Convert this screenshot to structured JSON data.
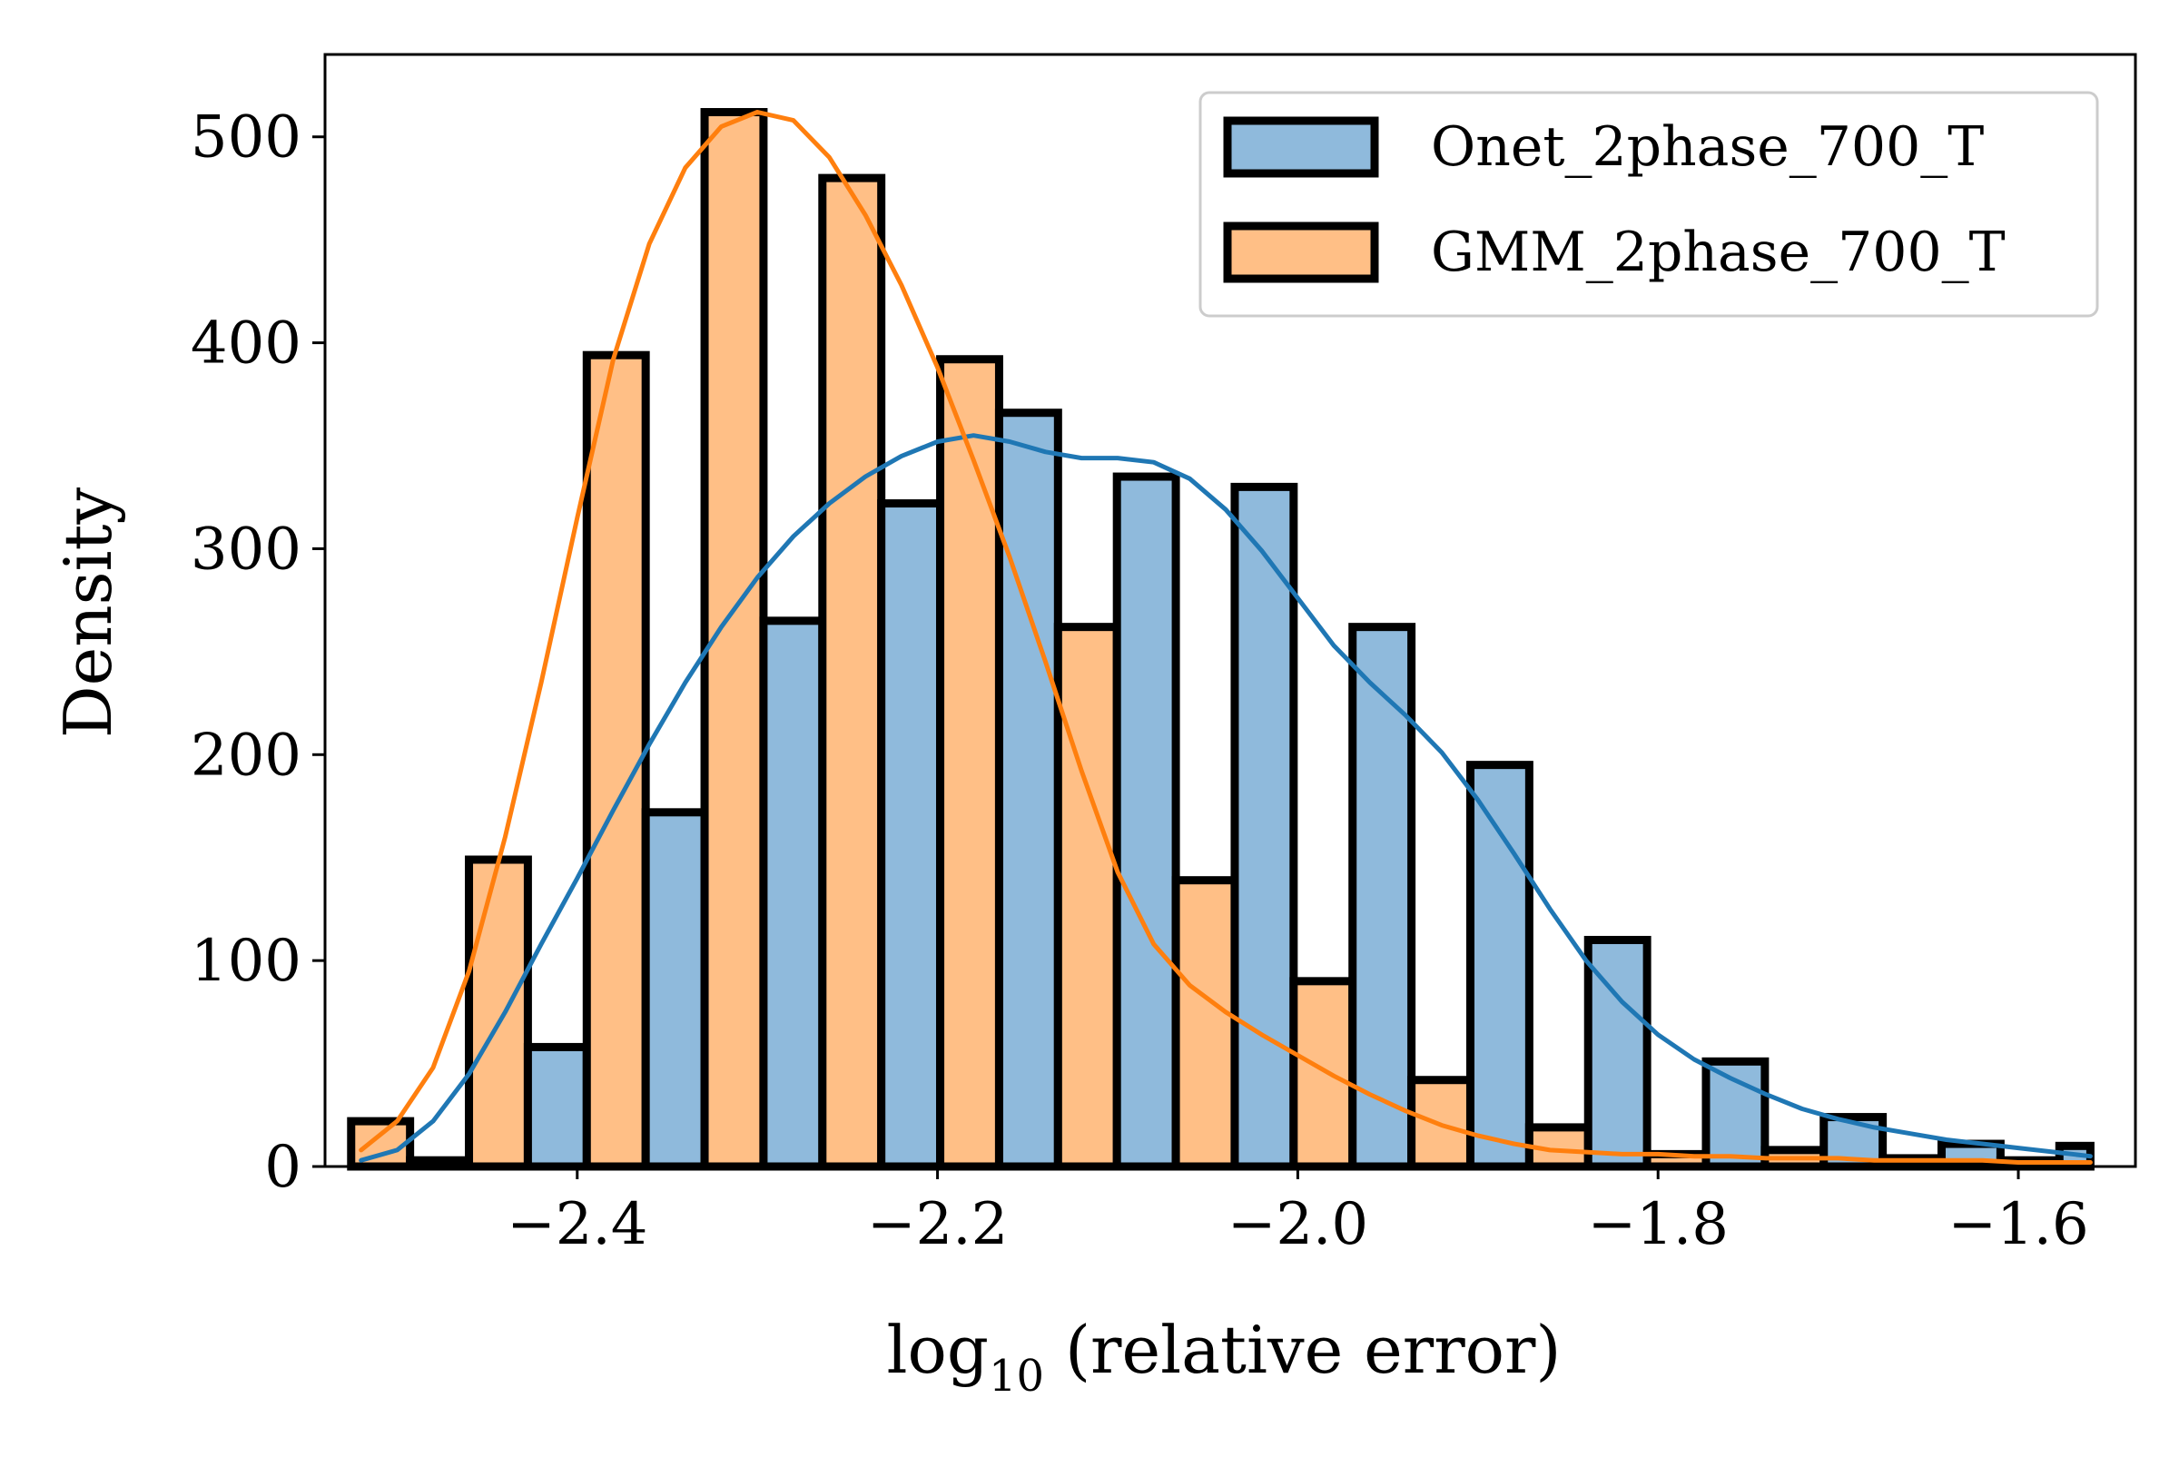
{
  "chart_data": {
    "type": "histogram",
    "title": "",
    "xlabel": "log",
    "xlabel_subscript": "10",
    "xlabel_suffix": " (relative error)",
    "ylabel": "Density",
    "xlim": [
      -2.54,
      -1.535
    ],
    "ylim": [
      0,
      540
    ],
    "x_ticks": [
      -2.4,
      -2.2,
      -2.0,
      -1.8,
      -1.6
    ],
    "x_tick_labels": [
      "−2.4",
      "−2.2",
      "−2.0",
      "−1.8",
      "−1.6"
    ],
    "y_ticks": [
      0,
      100,
      200,
      300,
      400,
      500
    ],
    "y_tick_labels": [
      "0",
      "100",
      "200",
      "300",
      "400",
      "500"
    ],
    "grid": false,
    "legend_position": "top-right",
    "bin_edges": [
      -2.5255,
      -2.4928,
      -2.4601,
      -2.4274,
      -2.3947,
      -2.362,
      -2.3293,
      -2.2966,
      -2.2639,
      -2.2312,
      -2.1985,
      -2.1658,
      -2.1331,
      -2.1004,
      -2.0677,
      -2.035,
      -2.0023,
      -1.9696,
      -1.9369,
      -1.9042,
      -1.8715,
      -1.8388,
      -1.8061,
      -1.7734,
      -1.7407,
      -1.708,
      -1.6753,
      -1.6426,
      -1.6099,
      -1.5772,
      -1.56
    ],
    "series": [
      {
        "name": "Onet_2phase_700_T",
        "color": "#1f77b4",
        "fill": "#8fbadc",
        "values": [
          3,
          58,
          172,
          265,
          322,
          366,
          335,
          330,
          262,
          195,
          110,
          51,
          24,
          11,
          10
        ],
        "kde_x": [
          -2.52,
          -2.5,
          -2.48,
          -2.46,
          -2.44,
          -2.42,
          -2.4,
          -2.38,
          -2.36,
          -2.34,
          -2.32,
          -2.3,
          -2.28,
          -2.26,
          -2.24,
          -2.22,
          -2.2,
          -2.18,
          -2.16,
          -2.14,
          -2.12,
          -2.1,
          -2.08,
          -2.06,
          -2.04,
          -2.02,
          -2.0,
          -1.98,
          -1.96,
          -1.94,
          -1.92,
          -1.9,
          -1.88,
          -1.86,
          -1.84,
          -1.82,
          -1.8,
          -1.78,
          -1.76,
          -1.74,
          -1.72,
          -1.7,
          -1.68,
          -1.66,
          -1.64,
          -1.62,
          -1.6,
          -1.58,
          -1.56
        ],
        "kde_y": [
          3,
          8,
          22,
          45,
          75,
          108,
          140,
          173,
          205,
          235,
          262,
          286,
          306,
          322,
          335,
          345,
          352,
          355,
          352,
          347,
          344,
          344,
          342,
          334,
          319,
          299,
          276,
          253,
          235,
          219,
          201,
          178,
          152,
          125,
          100,
          80,
          64,
          52,
          43,
          35,
          28,
          23,
          19,
          16,
          13,
          11,
          9,
          7,
          5
        ]
      },
      {
        "name": "GMM_2phase_700_T",
        "color": "#ff7f0e",
        "fill": "#ffbf86",
        "values": [
          22,
          149,
          394,
          512,
          480,
          392,
          262,
          139,
          90,
          42,
          19,
          6,
          8,
          4,
          3
        ],
        "kde_x": [
          -2.52,
          -2.5,
          -2.48,
          -2.46,
          -2.44,
          -2.42,
          -2.4,
          -2.38,
          -2.36,
          -2.34,
          -2.32,
          -2.3,
          -2.28,
          -2.26,
          -2.24,
          -2.22,
          -2.2,
          -2.18,
          -2.16,
          -2.14,
          -2.12,
          -2.1,
          -2.08,
          -2.06,
          -2.04,
          -2.02,
          -2.0,
          -1.98,
          -1.96,
          -1.94,
          -1.92,
          -1.9,
          -1.88,
          -1.86,
          -1.84,
          -1.82,
          -1.8,
          -1.78,
          -1.76,
          -1.74,
          -1.72,
          -1.7,
          -1.68,
          -1.66,
          -1.64,
          -1.62,
          -1.6,
          -1.58,
          -1.56
        ],
        "kde_y": [
          8,
          22,
          48,
          95,
          160,
          235,
          315,
          392,
          448,
          485,
          505,
          512,
          508,
          490,
          462,
          428,
          388,
          343,
          296,
          245,
          192,
          143,
          108,
          88,
          75,
          64,
          54,
          44,
          35,
          27,
          20,
          15,
          11,
          8,
          7,
          6,
          6,
          5,
          5,
          4,
          4,
          4,
          3,
          3,
          3,
          3,
          2,
          2,
          2
        ]
      }
    ]
  }
}
